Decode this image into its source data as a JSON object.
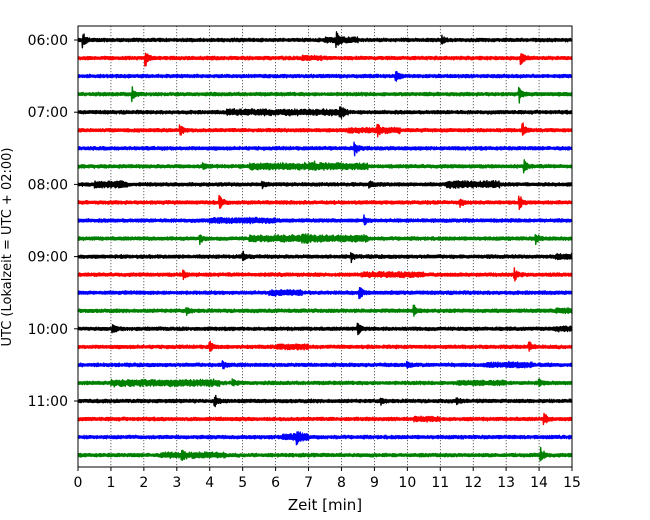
{
  "chart_data": {
    "type": "line",
    "subtype": "helicorder",
    "title": "",
    "xlabel": "Zeit  [min]",
    "ylabel": "UTC (Lokalzeit = UTC + 02:00)",
    "xlim": [
      0,
      15
    ],
    "x_ticks": [
      "0",
      "1",
      "2",
      "3",
      "4",
      "5",
      "6",
      "7",
      "8",
      "9",
      "10",
      "11",
      "12",
      "13",
      "14",
      "15"
    ],
    "y_tick_labels": [
      "06:00",
      "07:00",
      "08:00",
      "09:00",
      "10:00",
      "11:00"
    ],
    "traces_per_hour": 4,
    "trace_start_times": [
      "06:00",
      "06:15",
      "06:30",
      "06:45",
      "07:00",
      "07:15",
      "07:30",
      "07:45",
      "08:00",
      "08:15",
      "08:30",
      "08:45",
      "09:00",
      "09:15",
      "09:30",
      "09:45",
      "10:00",
      "10:15",
      "10:30",
      "10:45",
      "11:00",
      "11:15",
      "11:30",
      "11:45"
    ],
    "trace_colors": [
      "#000000",
      "#ff0000",
      "#0000ff",
      "#008000"
    ],
    "grid": "vertical dotted at each minute",
    "legend": "none",
    "events": [
      [
        [
          0.15,
          1
        ],
        [
          7.85,
          1
        ],
        [
          11.05,
          0.5
        ]
      ],
      [
        [
          2.05,
          1
        ],
        [
          13.45,
          1
        ]
      ],
      [
        [
          9.65,
          1
        ]
      ],
      [
        [
          1.65,
          0.8
        ],
        [
          13.4,
          1
        ]
      ],
      [
        [
          7.95,
          0.8
        ]
      ],
      [
        [
          3.1,
          0.9
        ],
        [
          9.1,
          0.6
        ],
        [
          13.5,
          1
        ]
      ],
      [
        [
          8.4,
          1
        ]
      ],
      [
        [
          3.8,
          0.7
        ],
        [
          13.55,
          0.8
        ]
      ],
      [
        [
          5.6,
          0.5
        ],
        [
          8.85,
          0.5
        ]
      ],
      [
        [
          4.3,
          1
        ],
        [
          11.6,
          0.5
        ],
        [
          13.4,
          1
        ]
      ],
      [
        [
          8.7,
          0.6
        ]
      ],
      [
        [
          3.7,
          0.6
        ],
        [
          13.9,
          0.7
        ]
      ],
      [
        [
          5.0,
          0.7
        ],
        [
          8.3,
          0.6
        ]
      ],
      [
        [
          3.2,
          0.7
        ],
        [
          13.25,
          0.9
        ]
      ],
      [
        [
          8.55,
          1
        ]
      ],
      [
        [
          3.3,
          0.7
        ],
        [
          10.2,
          0.7
        ]
      ],
      [
        [
          1.05,
          0.7
        ],
        [
          8.5,
          0.9
        ]
      ],
      [
        [
          4.0,
          0.8
        ],
        [
          13.7,
          0.7
        ]
      ],
      [
        [
          4.4,
          0.8
        ],
        [
          10.0,
          0.6
        ]
      ],
      [
        [
          4.7,
          0.5
        ],
        [
          14.0,
          0.5
        ]
      ],
      [
        [
          4.15,
          1
        ],
        [
          9.2,
          0.6
        ],
        [
          11.5,
          0.5
        ]
      ],
      [
        [
          14.15,
          0.9
        ]
      ],
      [
        [
          6.65,
          0.8
        ]
      ],
      [
        [
          3.15,
          0.6
        ],
        [
          14.05,
          1
        ]
      ]
    ],
    "noisy_segments": [
      [
        [
          7.5,
          8.5,
          0.5
        ]
      ],
      [
        [
          6.8,
          7.4,
          0.4
        ]
      ],
      [],
      [],
      [
        [
          4.5,
          8.2,
          0.6
        ]
      ],
      [
        [
          8.2,
          9.8,
          0.5
        ]
      ],
      [],
      [
        [
          5.2,
          7.2,
          0.7
        ],
        [
          7.0,
          8.8,
          0.7
        ]
      ],
      [
        [
          0.5,
          1.5,
          0.7
        ],
        [
          11.2,
          12.8,
          0.8
        ]
      ],
      [],
      [
        [
          4.0,
          6.0,
          0.5
        ]
      ],
      [
        [
          5.2,
          7.0,
          0.7
        ],
        [
          6.8,
          8.8,
          0.7
        ]
      ],
      [
        [
          14.5,
          15.0,
          0.6
        ]
      ],
      [
        [
          8.6,
          10.5,
          0.5
        ]
      ],
      [
        [
          5.8,
          6.8,
          0.5
        ]
      ],
      [
        [
          14.5,
          15.0,
          0.5
        ]
      ],
      [
        [
          14.5,
          15.0,
          0.4
        ]
      ],
      [
        [
          6.0,
          7.0,
          0.5
        ]
      ],
      [
        [
          12.4,
          13.8,
          0.5
        ]
      ],
      [
        [
          1.0,
          4.3,
          0.7
        ],
        [
          11.5,
          13.0,
          0.4
        ]
      ],
      [],
      [
        [
          10.2,
          11.0,
          0.4
        ]
      ],
      [
        [
          6.2,
          7.0,
          0.8
        ]
      ],
      [
        [
          2.5,
          4.5,
          0.5
        ]
      ]
    ]
  }
}
